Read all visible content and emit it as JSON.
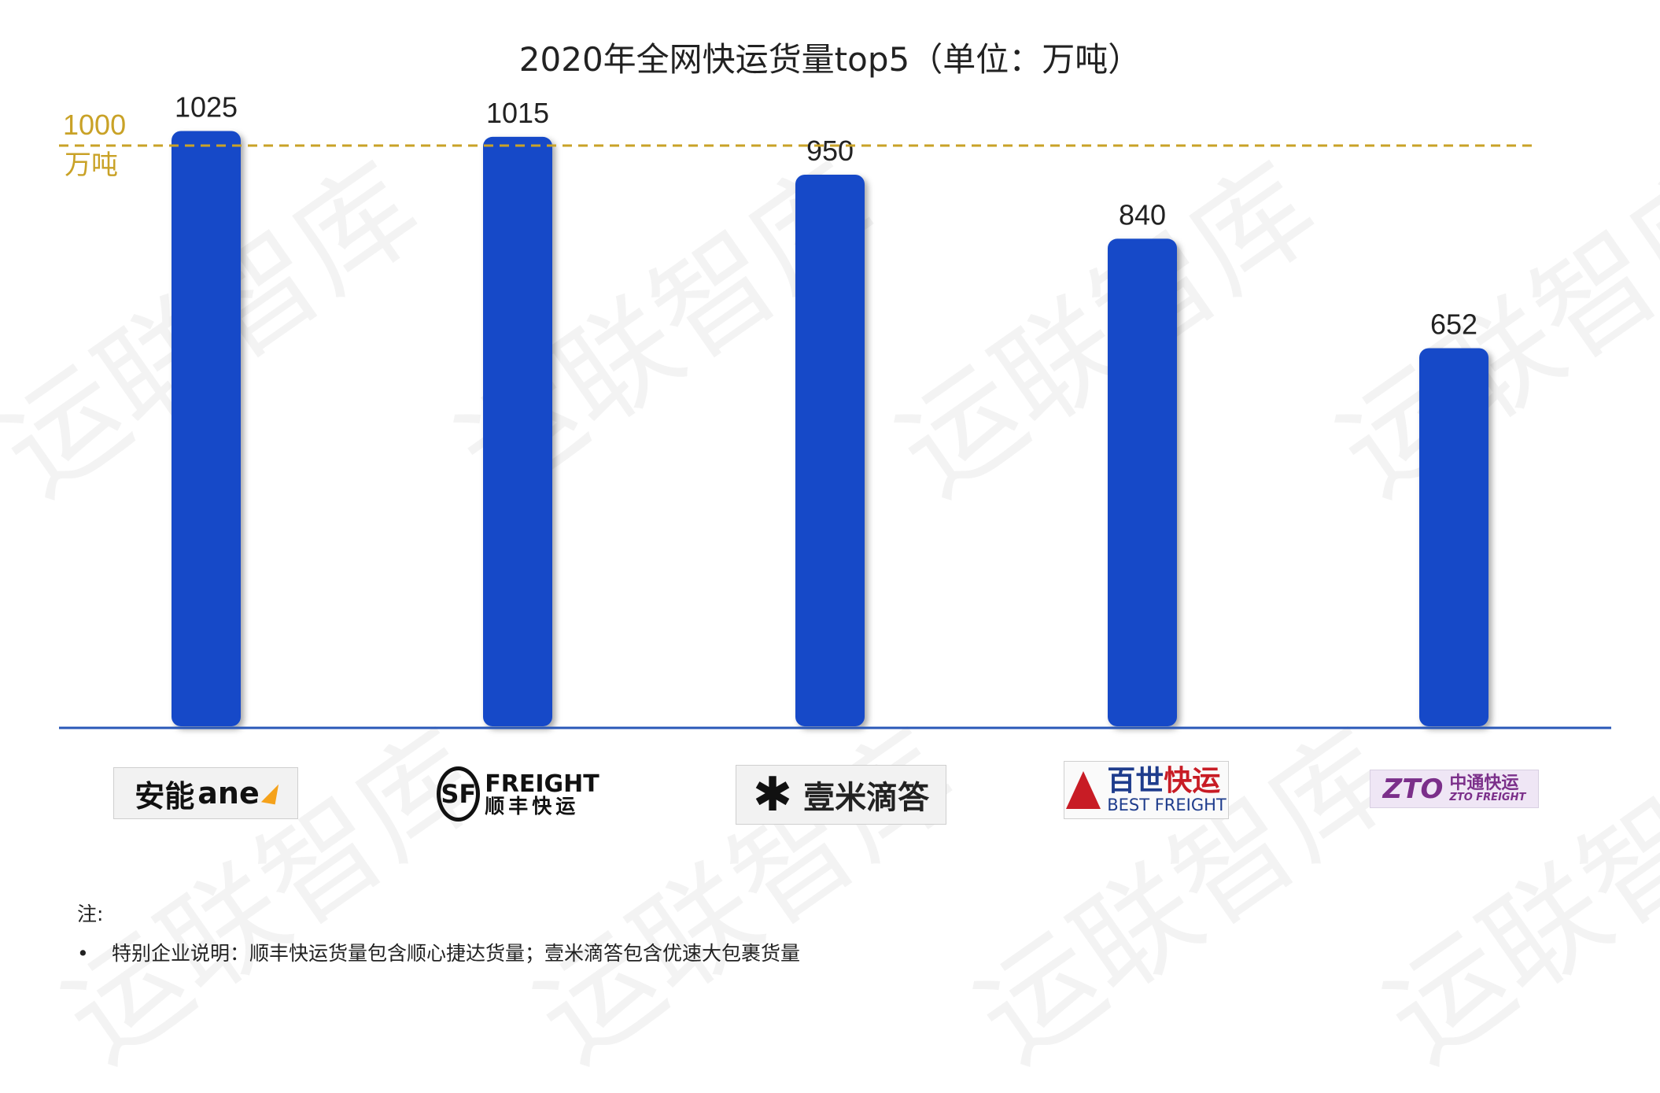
{
  "chart_data": {
    "type": "bar",
    "title": "2020年全网快运货量top5（单位：万吨）",
    "categories": [
      "安能",
      "顺丰快运",
      "壹米滴答",
      "百世快运",
      "中通快运"
    ],
    "values": [
      1025,
      1015,
      950,
      840,
      652
    ],
    "ylim": [
      0,
      1250
    ],
    "reference_line": {
      "value": 1000,
      "label_value": "1000",
      "label_unit": "万吨",
      "color": "#c9a227"
    },
    "bar_color": "#1249c8",
    "axis_color": "#2a58b8",
    "grid": false
  },
  "logos": {
    "ane": {
      "cn": "安能",
      "en": "ane"
    },
    "sf": {
      "mark": "SF",
      "en": "FREIGHT",
      "cn": "顺丰快运"
    },
    "yimi": {
      "text": "壹米滴答"
    },
    "best": {
      "cn_a": "百世",
      "cn_b": "快运",
      "en": "BEST FREIGHT"
    },
    "zto": {
      "mark": "ZTO",
      "cn": "中通快运",
      "en": "ZTO FREIGHT"
    }
  },
  "watermark": "运联智库",
  "notes": {
    "heading": "注:",
    "bullet": "•",
    "text": "特别企业说明：顺丰快运货量包含顺心捷达货量；壹米滴答包含优速大包裹货量"
  }
}
